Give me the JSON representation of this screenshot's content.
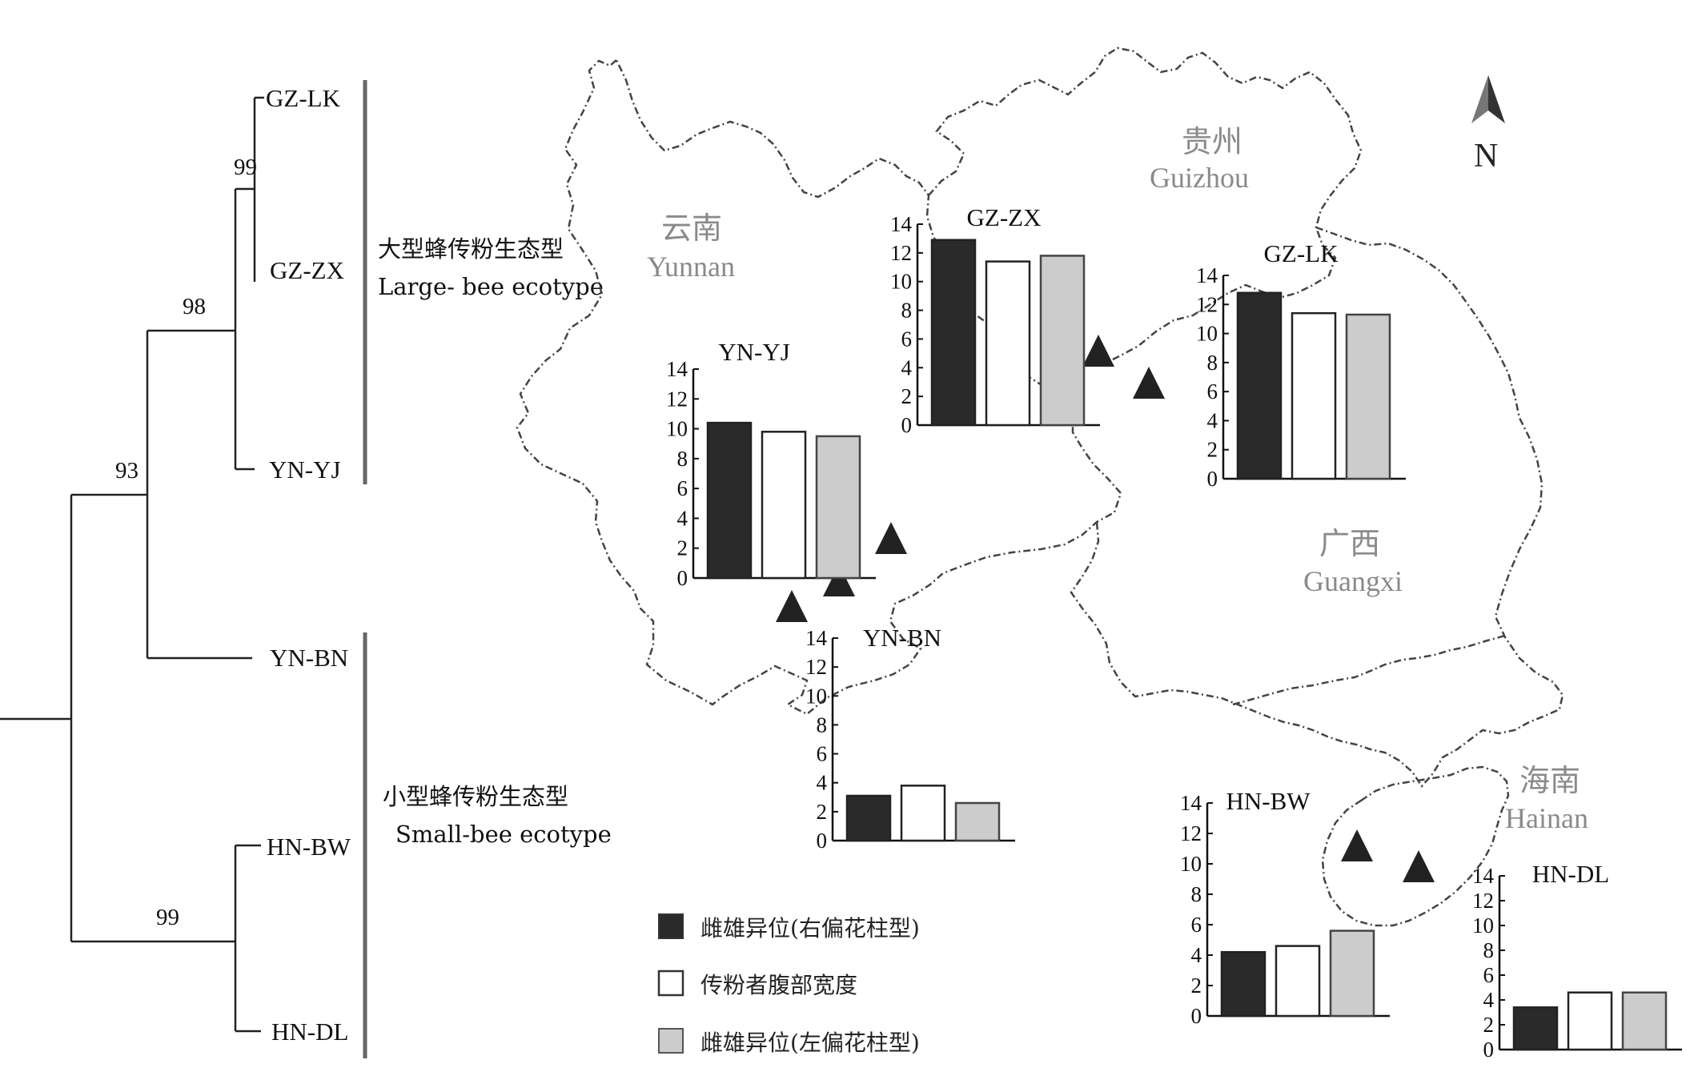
{
  "tree": {
    "taxa": [
      "GZ-LK",
      "GZ-ZX",
      "YN-YJ",
      "YN-BN",
      "HN-BW",
      "HN-DL"
    ],
    "bootstrap": [
      "99",
      "98",
      "93",
      "99"
    ]
  },
  "ecotypes": {
    "large": {
      "zh": "大型蜂传粉生态型",
      "en": "Large- bee ecotype"
    },
    "small": {
      "zh": "小型蜂传粉生态型",
      "en": "Small-bee ecotype"
    }
  },
  "map": {
    "provinces": [
      {
        "zh": "云南",
        "en": "Yunnan"
      },
      {
        "zh": "贵州",
        "en": "Guizhou"
      },
      {
        "zh": "广西",
        "en": "Guangxi"
      },
      {
        "zh": "海南",
        "en": "Hainan"
      }
    ],
    "north_label": "N"
  },
  "legend": [
    {
      "label": "雌雄异位(右偏花柱型)",
      "color": "#2a2a2a"
    },
    {
      "label": "传粉者腹部宽度",
      "color": "#ffffff"
    },
    {
      "label": "雌雄异位(左偏花柱型)",
      "color": "#cccccc"
    }
  ],
  "chart_data": [
    {
      "type": "bar",
      "title": "YN-YJ",
      "series": [
        "雌雄异位(右偏花柱型)",
        "传粉者腹部宽度",
        "雌雄异位(左偏花柱型)"
      ],
      "values": [
        10.4,
        9.8,
        9.5
      ],
      "ylim": [
        0,
        14
      ],
      "yticks": [
        0,
        2,
        4,
        6,
        8,
        10,
        12,
        14
      ]
    },
    {
      "type": "bar",
      "title": "GZ-ZX",
      "series": [
        "雌雄异位(右偏花柱型)",
        "传粉者腹部宽度",
        "雌雄异位(左偏花柱型)"
      ],
      "values": [
        12.9,
        11.4,
        11.8
      ],
      "ylim": [
        0,
        14
      ],
      "yticks": [
        0,
        2,
        4,
        6,
        8,
        10,
        12,
        14
      ]
    },
    {
      "type": "bar",
      "title": "GZ-LK",
      "series": [
        "雌雄异位(右偏花柱型)",
        "传粉者腹部宽度",
        "雌雄异位(左偏花柱型)"
      ],
      "values": [
        12.8,
        11.4,
        11.3
      ],
      "ylim": [
        0,
        14
      ],
      "yticks": [
        0,
        2,
        4,
        6,
        8,
        10,
        12,
        14
      ]
    },
    {
      "type": "bar",
      "title": "YN-BN",
      "series": [
        "雌雄异位(右偏花柱型)",
        "传粉者腹部宽度",
        "雌雄异位(左偏花柱型)"
      ],
      "values": [
        3.1,
        3.8,
        2.6
      ],
      "ylim": [
        0,
        14
      ],
      "yticks": [
        0,
        2,
        4,
        6,
        8,
        10,
        12,
        14
      ]
    },
    {
      "type": "bar",
      "title": "HN-BW",
      "series": [
        "雌雄异位(右偏花柱型)",
        "传粉者腹部宽度",
        "雌雄异位(左偏花柱型)"
      ],
      "values": [
        4.2,
        4.6,
        5.6
      ],
      "ylim": [
        0,
        14
      ],
      "yticks": [
        0,
        2,
        4,
        6,
        8,
        10,
        12,
        14
      ]
    },
    {
      "type": "bar",
      "title": "HN-DL",
      "series": [
        "雌雄异位(右偏花柱型)",
        "传粉者腹部宽度",
        "雌雄异位(左偏花柱型)"
      ],
      "values": [
        3.4,
        4.6,
        4.6
      ],
      "ylim": [
        0,
        14
      ],
      "yticks": [
        0,
        2,
        4,
        6,
        8,
        10,
        12,
        14
      ]
    }
  ]
}
